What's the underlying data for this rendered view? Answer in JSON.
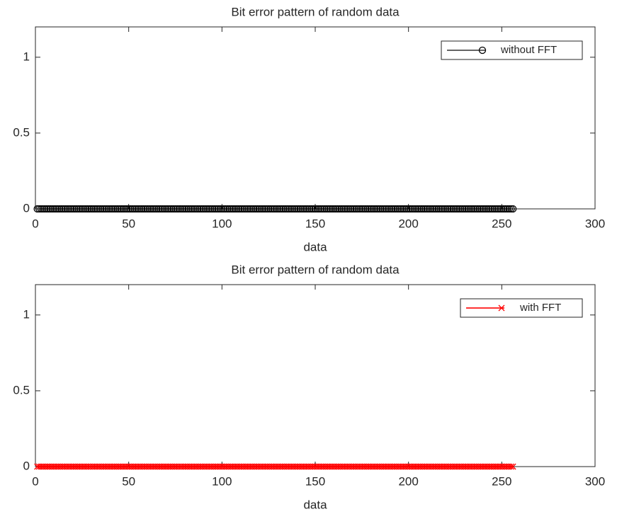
{
  "chart_data": [
    {
      "type": "line",
      "title": "Bit error pattern of random data",
      "xlabel": "data",
      "x": [
        1,
        2,
        3,
        4,
        5,
        6,
        7,
        8,
        9,
        10,
        11,
        12,
        13,
        14,
        15,
        16,
        17,
        18,
        19,
        20,
        21,
        22,
        23,
        24,
        25,
        26,
        27,
        28,
        29,
        30,
        31,
        32,
        33,
        34,
        35,
        36,
        37,
        38,
        39,
        40,
        41,
        42,
        43,
        44,
        45,
        46,
        47,
        48,
        49,
        50,
        51,
        52,
        53,
        54,
        55,
        56,
        57,
        58,
        59,
        60,
        61,
        62,
        63,
        64,
        65,
        66,
        67,
        68,
        69,
        70,
        71,
        72,
        73,
        74,
        75,
        76,
        77,
        78,
        79,
        80,
        81,
        82,
        83,
        84,
        85,
        86,
        87,
        88,
        89,
        90,
        91,
        92,
        93,
        94,
        95,
        96,
        97,
        98,
        99,
        100,
        101,
        102,
        103,
        104,
        105,
        106,
        107,
        108,
        109,
        110,
        111,
        112,
        113,
        114,
        115,
        116,
        117,
        118,
        119,
        120,
        121,
        122,
        123,
        124,
        125,
        126,
        127,
        128,
        129,
        130,
        131,
        132,
        133,
        134,
        135,
        136,
        137,
        138,
        139,
        140,
        141,
        142,
        143,
        144,
        145,
        146,
        147,
        148,
        149,
        150,
        151,
        152,
        153,
        154,
        155,
        156,
        157,
        158,
        159,
        160,
        161,
        162,
        163,
        164,
        165,
        166,
        167,
        168,
        169,
        170,
        171,
        172,
        173,
        174,
        175,
        176,
        177,
        178,
        179,
        180,
        181,
        182,
        183,
        184,
        185,
        186,
        187,
        188,
        189,
        190,
        191,
        192,
        193,
        194,
        195,
        196,
        197,
        198,
        199,
        200,
        201,
        202,
        203,
        204,
        205,
        206,
        207,
        208,
        209,
        210,
        211,
        212,
        213,
        214,
        215,
        216,
        217,
        218,
        219,
        220,
        221,
        222,
        223,
        224,
        225,
        226,
        227,
        228,
        229,
        230,
        231,
        232,
        233,
        234,
        235,
        236,
        237,
        238,
        239,
        240,
        241,
        242,
        243,
        244,
        245,
        246,
        247,
        248,
        249,
        250,
        251,
        252,
        253,
        254,
        255,
        256
      ],
      "series": [
        {
          "name": "without FFT",
          "color": "#000000",
          "marker": "o",
          "values": [
            0,
            0,
            0,
            0,
            0,
            0,
            0,
            0,
            0,
            0,
            0,
            0,
            0,
            0,
            0,
            0,
            0,
            0,
            0,
            0,
            0,
            0,
            0,
            0,
            0,
            0,
            0,
            0,
            0,
            0,
            0,
            0,
            0,
            0,
            0,
            0,
            0,
            0,
            0,
            0,
            0,
            0,
            0,
            0,
            0,
            0,
            0,
            0,
            0,
            0,
            0,
            0,
            0,
            0,
            0,
            0,
            0,
            0,
            0,
            0,
            0,
            0,
            0,
            0,
            0,
            0,
            0,
            0,
            0,
            0,
            0,
            0,
            0,
            0,
            0,
            0,
            0,
            0,
            0,
            0,
            0,
            0,
            0,
            0,
            0,
            0,
            0,
            0,
            0,
            0,
            0,
            0,
            0,
            0,
            0,
            0,
            0,
            0,
            0,
            0,
            0,
            0,
            0,
            0,
            0,
            0,
            0,
            0,
            0,
            0,
            0,
            0,
            0,
            0,
            0,
            0,
            0,
            0,
            0,
            0,
            0,
            0,
            0,
            0,
            0,
            0,
            0,
            0,
            0,
            0,
            0,
            0,
            0,
            0,
            0,
            0,
            0,
            0,
            0,
            0,
            0,
            0,
            0,
            0,
            0,
            0,
            0,
            0,
            0,
            0,
            0,
            0,
            0,
            0,
            0,
            0,
            0,
            0,
            0,
            0,
            0,
            0,
            0,
            0,
            0,
            0,
            0,
            0,
            0,
            0,
            0,
            0,
            0,
            0,
            0,
            0,
            0,
            0,
            0,
            0,
            0,
            0,
            0,
            0,
            0,
            0,
            0,
            0,
            0,
            0,
            0,
            0,
            0,
            0,
            0,
            0,
            0,
            0,
            0,
            0,
            0,
            0,
            0,
            0,
            0,
            0,
            0,
            0,
            0,
            0,
            0,
            0,
            0,
            0,
            0,
            0,
            0,
            0,
            0,
            0,
            0,
            0,
            0,
            0,
            0,
            0,
            0,
            0,
            0,
            0,
            0,
            0,
            0,
            0,
            0,
            0,
            0,
            0,
            0,
            0,
            0,
            0,
            0,
            0,
            0,
            0,
            0,
            0,
            0,
            0,
            0,
            0,
            0,
            0,
            0,
            0
          ]
        }
      ],
      "xlim": [
        0,
        300
      ],
      "xticks": [
        0,
        50,
        100,
        150,
        200,
        250,
        300
      ],
      "ylim": [
        0,
        1.2
      ],
      "yticks": [
        0,
        0.5,
        1
      ],
      "legend": "upper right"
    },
    {
      "type": "line",
      "title": "Bit error pattern of random data",
      "xlabel": "data",
      "x": [
        1,
        2,
        3,
        4,
        5,
        6,
        7,
        8,
        9,
        10,
        11,
        12,
        13,
        14,
        15,
        16,
        17,
        18,
        19,
        20,
        21,
        22,
        23,
        24,
        25,
        26,
        27,
        28,
        29,
        30,
        31,
        32,
        33,
        34,
        35,
        36,
        37,
        38,
        39,
        40,
        41,
        42,
        43,
        44,
        45,
        46,
        47,
        48,
        49,
        50,
        51,
        52,
        53,
        54,
        55,
        56,
        57,
        58,
        59,
        60,
        61,
        62,
        63,
        64,
        65,
        66,
        67,
        68,
        69,
        70,
        71,
        72,
        73,
        74,
        75,
        76,
        77,
        78,
        79,
        80,
        81,
        82,
        83,
        84,
        85,
        86,
        87,
        88,
        89,
        90,
        91,
        92,
        93,
        94,
        95,
        96,
        97,
        98,
        99,
        100,
        101,
        102,
        103,
        104,
        105,
        106,
        107,
        108,
        109,
        110,
        111,
        112,
        113,
        114,
        115,
        116,
        117,
        118,
        119,
        120,
        121,
        122,
        123,
        124,
        125,
        126,
        127,
        128,
        129,
        130,
        131,
        132,
        133,
        134,
        135,
        136,
        137,
        138,
        139,
        140,
        141,
        142,
        143,
        144,
        145,
        146,
        147,
        148,
        149,
        150,
        151,
        152,
        153,
        154,
        155,
        156,
        157,
        158,
        159,
        160,
        161,
        162,
        163,
        164,
        165,
        166,
        167,
        168,
        169,
        170,
        171,
        172,
        173,
        174,
        175,
        176,
        177,
        178,
        179,
        180,
        181,
        182,
        183,
        184,
        185,
        186,
        187,
        188,
        189,
        190,
        191,
        192,
        193,
        194,
        195,
        196,
        197,
        198,
        199,
        200,
        201,
        202,
        203,
        204,
        205,
        206,
        207,
        208,
        209,
        210,
        211,
        212,
        213,
        214,
        215,
        216,
        217,
        218,
        219,
        220,
        221,
        222,
        223,
        224,
        225,
        226,
        227,
        228,
        229,
        230,
        231,
        232,
        233,
        234,
        235,
        236,
        237,
        238,
        239,
        240,
        241,
        242,
        243,
        244,
        245,
        246,
        247,
        248,
        249,
        250,
        251,
        252,
        253,
        254,
        255,
        256
      ],
      "series": [
        {
          "name": "with FFT",
          "color": "#ff0000",
          "marker": "x",
          "values": [
            0,
            0,
            0,
            0,
            0,
            0,
            0,
            0,
            0,
            0,
            0,
            0,
            0,
            0,
            0,
            0,
            0,
            0,
            0,
            0,
            0,
            0,
            0,
            0,
            0,
            0,
            0,
            0,
            0,
            0,
            0,
            0,
            0,
            0,
            0,
            0,
            0,
            0,
            0,
            0,
            0,
            0,
            0,
            0,
            0,
            0,
            0,
            0,
            0,
            0,
            0,
            0,
            0,
            0,
            0,
            0,
            0,
            0,
            0,
            0,
            0,
            0,
            0,
            0,
            0,
            0,
            0,
            0,
            0,
            0,
            0,
            0,
            0,
            0,
            0,
            0,
            0,
            0,
            0,
            0,
            0,
            0,
            0,
            0,
            0,
            0,
            0,
            0,
            0,
            0,
            0,
            0,
            0,
            0,
            0,
            0,
            0,
            0,
            0,
            0,
            0,
            0,
            0,
            0,
            0,
            0,
            0,
            0,
            0,
            0,
            0,
            0,
            0,
            0,
            0,
            0,
            0,
            0,
            0,
            0,
            0,
            0,
            0,
            0,
            0,
            0,
            0,
            0,
            0,
            0,
            0,
            0,
            0,
            0,
            0,
            0,
            0,
            0,
            0,
            0,
            0,
            0,
            0,
            0,
            0,
            0,
            0,
            0,
            0,
            0,
            0,
            0,
            0,
            0,
            0,
            0,
            0,
            0,
            0,
            0,
            0,
            0,
            0,
            0,
            0,
            0,
            0,
            0,
            0,
            0,
            0,
            0,
            0,
            0,
            0,
            0,
            0,
            0,
            0,
            0,
            0,
            0,
            0,
            0,
            0,
            0,
            0,
            0,
            0,
            0,
            0,
            0,
            0,
            0,
            0,
            0,
            0,
            0,
            0,
            0,
            0,
            0,
            0,
            0,
            0,
            0,
            0,
            0,
            0,
            0,
            0,
            0,
            0,
            0,
            0,
            0,
            0,
            0,
            0,
            0,
            0,
            0,
            0,
            0,
            0,
            0,
            0,
            0,
            0,
            0,
            0,
            0,
            0,
            0,
            0,
            0,
            0,
            0,
            0,
            0,
            0,
            0,
            0,
            0,
            0,
            0,
            0,
            0,
            0,
            0,
            0,
            0,
            0,
            0,
            0,
            0
          ]
        }
      ],
      "xlim": [
        0,
        300
      ],
      "xticks": [
        0,
        50,
        100,
        150,
        200,
        250,
        300
      ],
      "ylim": [
        0,
        1.2
      ],
      "yticks": [
        0,
        0.5,
        1
      ],
      "legend": "upper right"
    }
  ]
}
